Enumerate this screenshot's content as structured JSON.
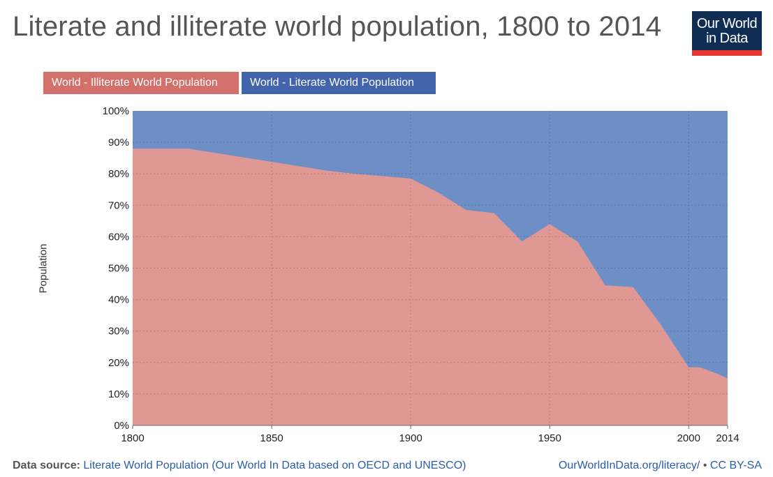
{
  "title": "Literate and illiterate world population, 1800 to 2014",
  "logo": {
    "line1": "Our World",
    "line2": "in Data"
  },
  "legend": [
    {
      "label": "World - Illiterate World Population",
      "color": "#d3706b"
    },
    {
      "label": "World - Literate World Population",
      "color": "#4264ab"
    }
  ],
  "footer": {
    "source_label": "Data source:",
    "source_text": "Literate World Population (Our World In Data based on OECD and UNESCO)",
    "link": "OurWorldInData.org/literacy/",
    "separator": "•",
    "license": "CC BY-SA"
  },
  "chart_data": {
    "type": "area",
    "stacking": "percent",
    "title": "Literate and illiterate world population, 1800 to 2014",
    "xlabel": "",
    "ylabel": "Population",
    "x": [
      1800,
      1820,
      1870,
      1880,
      1900,
      1910,
      1920,
      1930,
      1940,
      1950,
      1960,
      1970,
      1980,
      1990,
      2000,
      2004,
      2010,
      2014
    ],
    "series": [
      {
        "name": "World - Illiterate World Population",
        "color": "#e09894",
        "values": [
          88,
          88,
          81,
          80,
          78.5,
          74,
          68.5,
          67.5,
          58.5,
          64,
          58.5,
          44.5,
          44,
          32,
          18.5,
          18.5,
          16.5,
          15
        ]
      },
      {
        "name": "World - Literate World Population",
        "color": "#6e8fc5",
        "values": [
          12,
          12,
          19,
          20,
          21.5,
          26,
          31.5,
          32.5,
          41.5,
          36,
          41.5,
          55.5,
          56,
          68,
          81.5,
          81.5,
          83.5,
          85
        ]
      }
    ],
    "xlim": [
      1800,
      2014
    ],
    "ylim": [
      0,
      100
    ],
    "x_ticks": [
      1800,
      1850,
      1900,
      1950,
      2000,
      2014
    ],
    "y_ticks": [
      "0%",
      "10%",
      "20%",
      "30%",
      "40%",
      "50%",
      "60%",
      "70%",
      "80%",
      "90%",
      "100%"
    ],
    "grid": true,
    "legend_position": "top-left"
  }
}
